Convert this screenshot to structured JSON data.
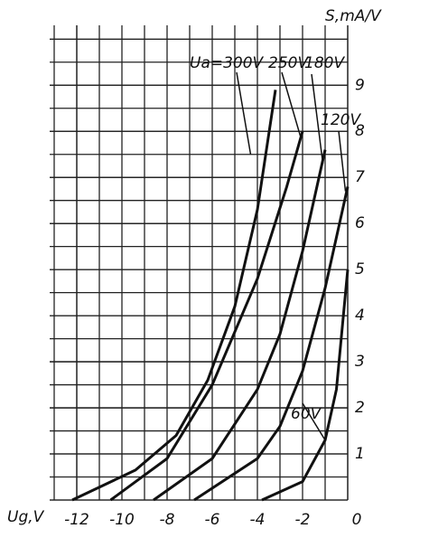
{
  "chart_data": {
    "type": "line",
    "xlabel": "Ug,V",
    "ylabel": "S,mA/V",
    "xlim": [
      -13.2,
      0
    ],
    "ylim": [
      0,
      10.3
    ],
    "xticks": [
      -12,
      -10,
      -8,
      -6,
      -4,
      -2,
      0
    ],
    "yticks": [
      1,
      2,
      3,
      4,
      5,
      6,
      7,
      8,
      9
    ],
    "grid": true,
    "color": "#111111",
    "series": [
      {
        "name": "Ua=300V",
        "x": [
          -12.2,
          -9.4,
          -7.6,
          -6.2,
          -5,
          -4,
          -3.2
        ],
        "values": [
          0,
          0.65,
          1.4,
          2.6,
          4.2,
          6.3,
          8.9
        ]
      },
      {
        "name": "250V",
        "x": [
          -10.5,
          -8,
          -6,
          -4,
          -2.7,
          -2
        ],
        "values": [
          0,
          0.9,
          2.5,
          4.8,
          6.8,
          8.0
        ]
      },
      {
        "name": "180V",
        "x": [
          -8.6,
          -6,
          -4,
          -3,
          -2,
          -1
        ],
        "values": [
          0,
          0.9,
          2.4,
          3.6,
          5.4,
          7.6
        ]
      },
      {
        "name": "120V",
        "x": [
          -6.8,
          -4,
          -3,
          -2,
          -1,
          0
        ],
        "values": [
          0,
          0.9,
          1.6,
          2.8,
          4.6,
          6.8
        ]
      },
      {
        "name": "60V",
        "x": [
          -3.8,
          -2,
          -1,
          -0.5,
          0
        ],
        "values": [
          0,
          0.4,
          1.3,
          2.4,
          5.0
        ]
      }
    ]
  }
}
